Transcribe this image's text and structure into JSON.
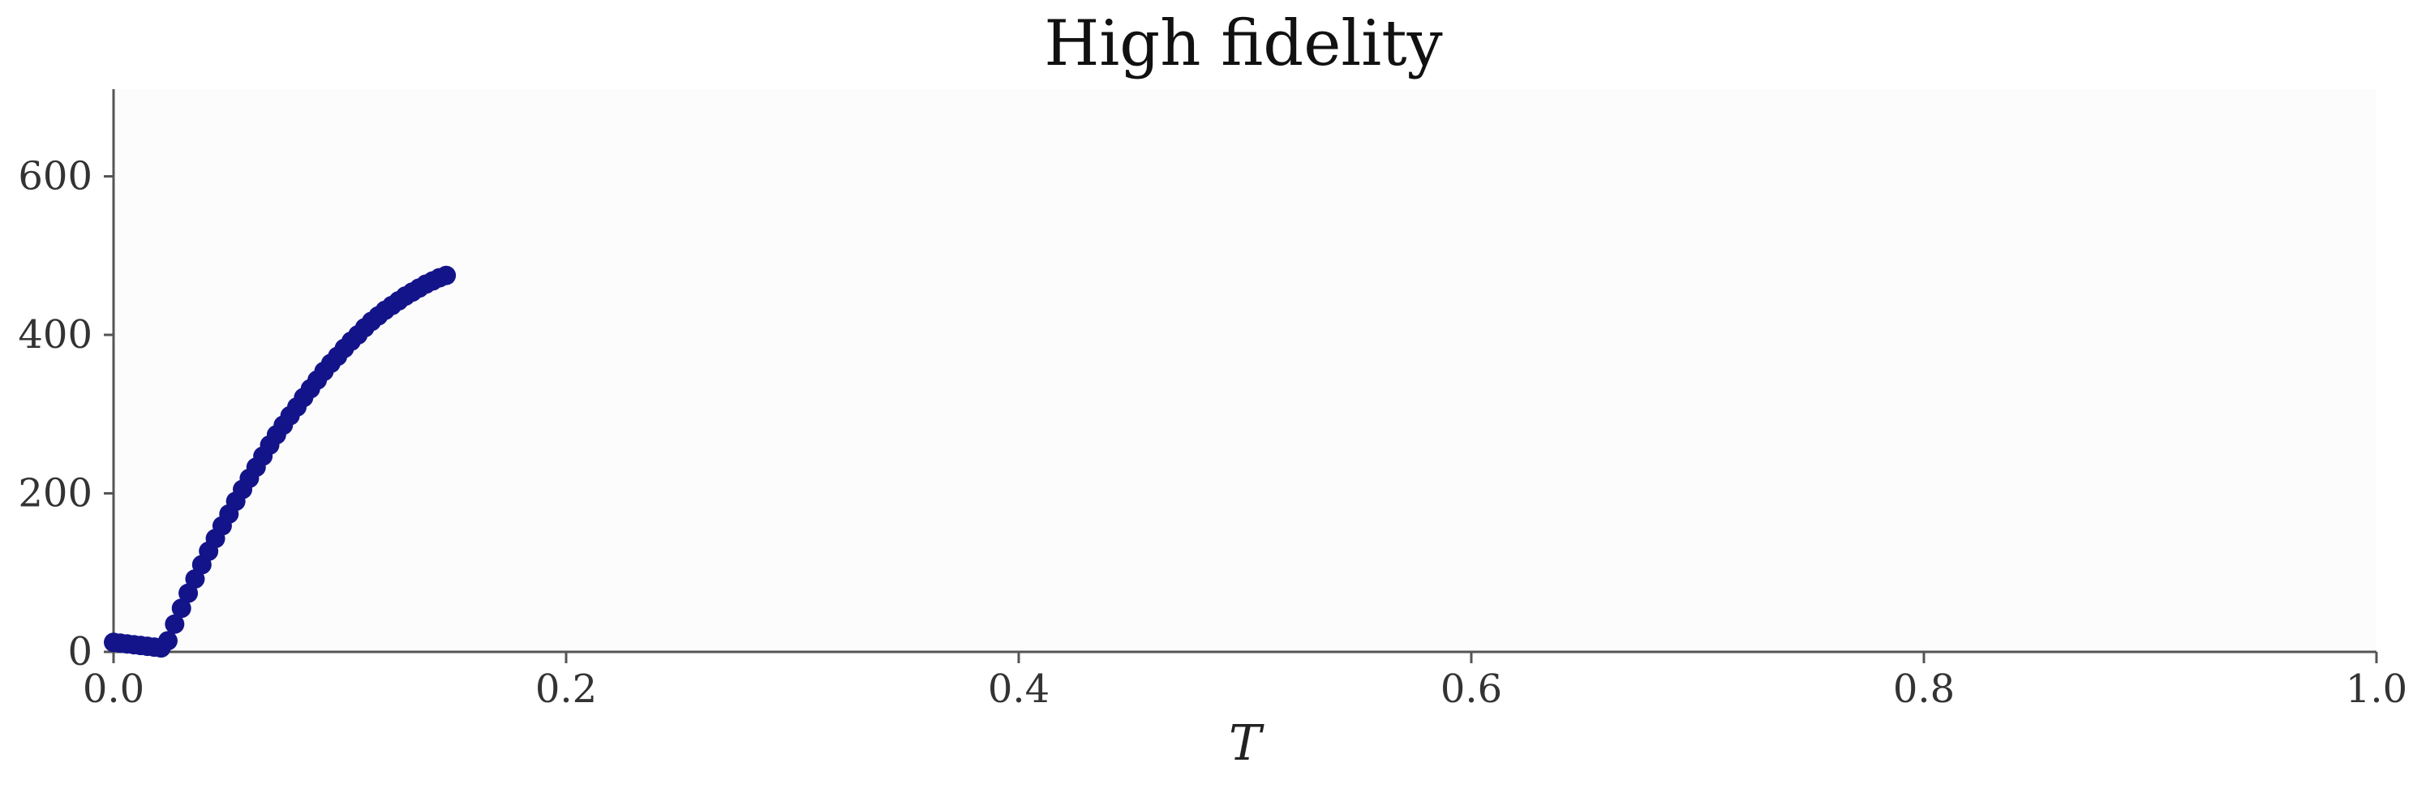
{
  "chart_data": {
    "type": "scatter",
    "title": "High fidelity",
    "xlabel": "T",
    "ylabel": "",
    "xlim": [
      0.0,
      1.0
    ],
    "ylim": [
      0,
      710
    ],
    "xticks": [
      {
        "value": 0.0,
        "label": "0.0"
      },
      {
        "value": 0.2,
        "label": "0.2"
      },
      {
        "value": 0.4,
        "label": "0.4"
      },
      {
        "value": 0.6,
        "label": "0.6"
      },
      {
        "value": 0.8,
        "label": "0.8"
      },
      {
        "value": 1.0,
        "label": "1.0"
      }
    ],
    "yticks": [
      {
        "value": 0,
        "label": "0"
      },
      {
        "value": 200,
        "label": "200"
      },
      {
        "value": 400,
        "label": "400"
      },
      {
        "value": 600,
        "label": "600"
      }
    ],
    "grid": false,
    "marker_color": "#14148a",
    "series": [
      {
        "x": [
          0.0,
          0.003,
          0.006,
          0.009,
          0.012,
          0.015,
          0.018,
          0.021,
          0.024,
          0.027,
          0.03,
          0.033,
          0.036,
          0.039,
          0.042,
          0.045,
          0.048,
          0.051,
          0.054,
          0.057,
          0.06,
          0.063,
          0.066,
          0.069,
          0.072,
          0.075,
          0.078,
          0.081,
          0.084,
          0.087,
          0.09,
          0.093,
          0.096,
          0.099,
          0.102,
          0.105,
          0.108,
          0.111,
          0.114,
          0.117,
          0.12,
          0.123,
          0.126,
          0.129,
          0.132,
          0.135,
          0.138,
          0.141,
          0.144,
          0.147
        ],
        "y": [
          12,
          11,
          10,
          9,
          8,
          7,
          6,
          5,
          14,
          35,
          55,
          74,
          92,
          110,
          127,
          143,
          159,
          174,
          190,
          205,
          219,
          233,
          247,
          261,
          274,
          286,
          298,
          309,
          321,
          332,
          343,
          354,
          364,
          373,
          383,
          392,
          400,
          409,
          417,
          424,
          431,
          437,
          443,
          449,
          454,
          459,
          464,
          468,
          472,
          475
        ]
      }
    ]
  }
}
